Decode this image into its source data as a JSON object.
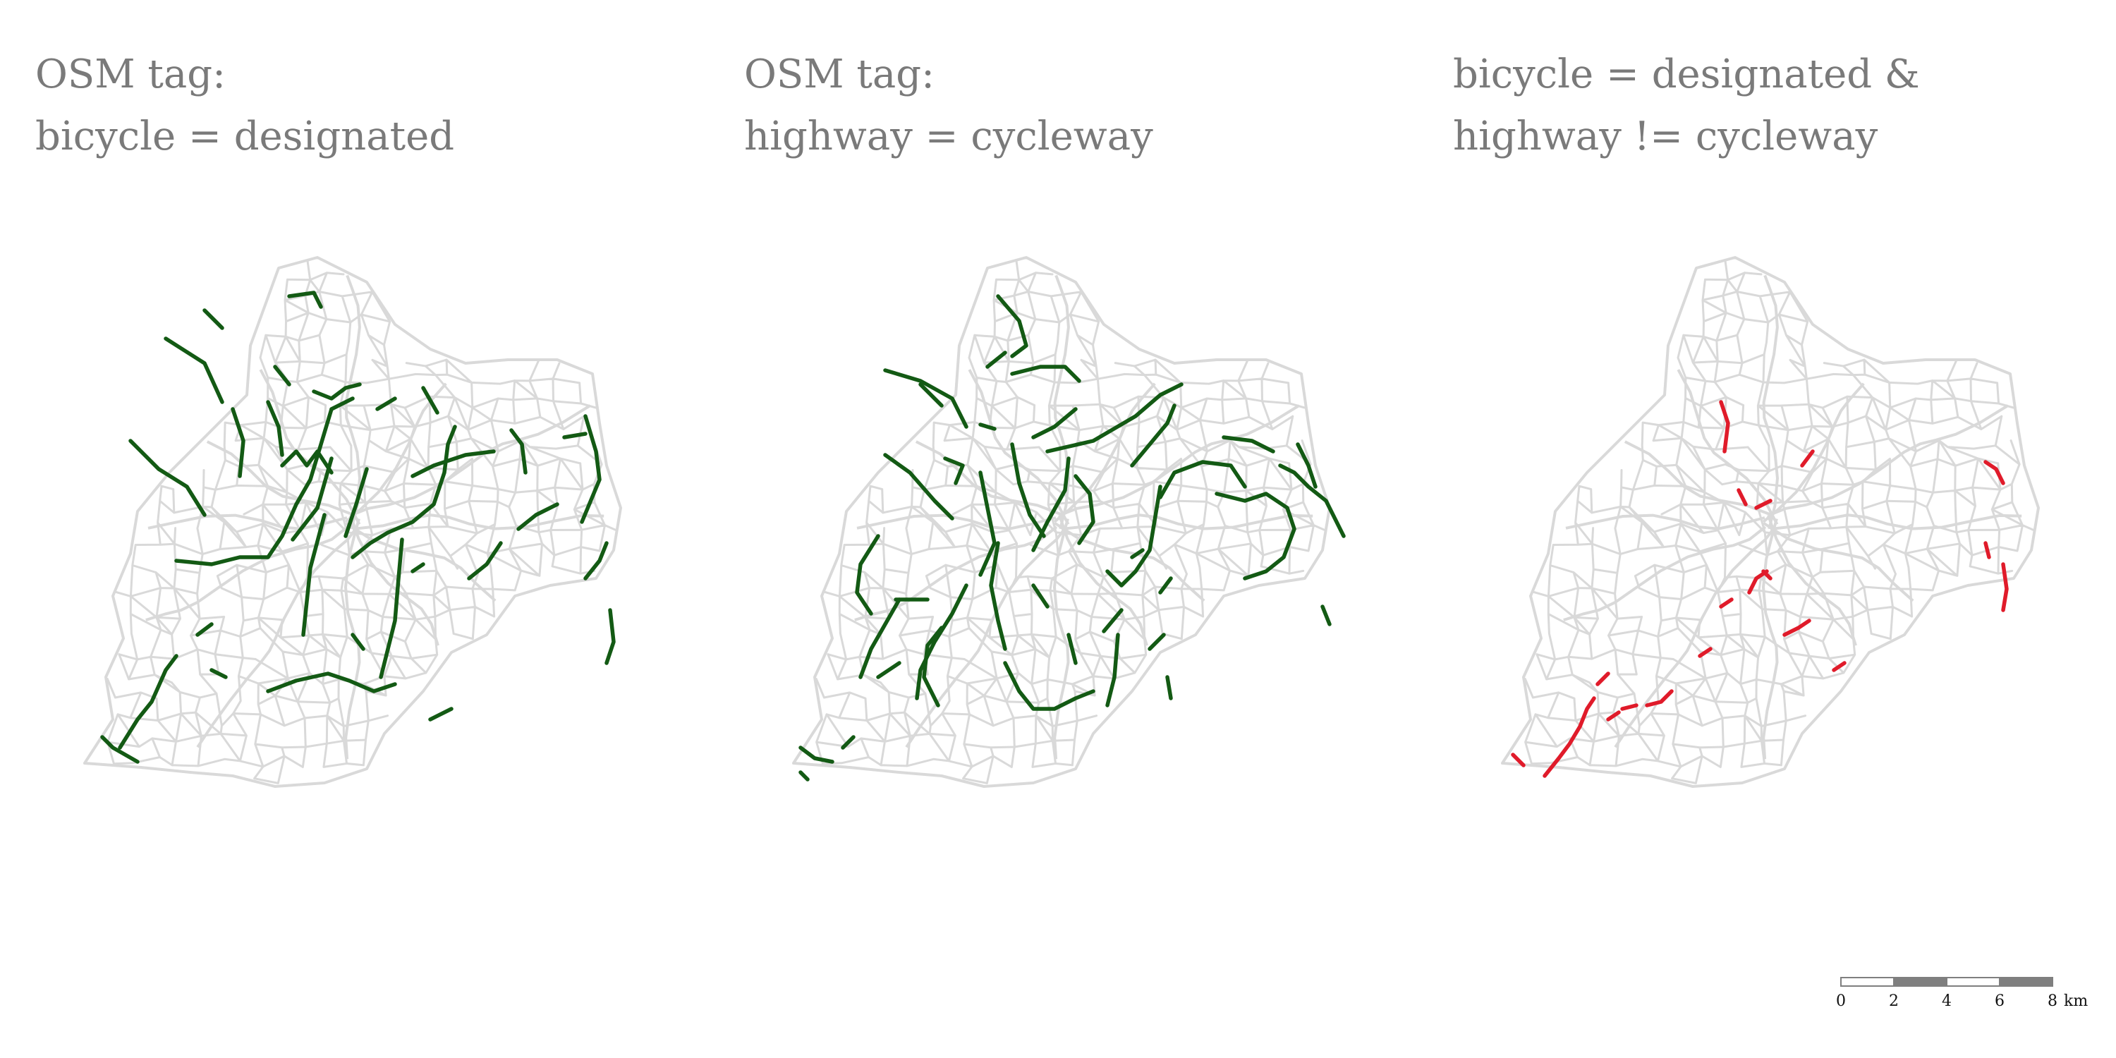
{
  "panels": [
    {
      "title_line1": "OSM tag:",
      "title_line2": "bicycle = designated",
      "highlight_color": "#135a14"
    },
    {
      "title_line1": "OSM tag:",
      "title_line2": "highway = cycleway",
      "highlight_color": "#135a14"
    },
    {
      "title_line1": "bicycle = designated &",
      "title_line2": "highway != cycleway",
      "highlight_color": "#e01b2a"
    }
  ],
  "base_network_color": "#d9d9d9",
  "title_color": "#7a7a7a",
  "scale_bar": {
    "ticks": [
      "0",
      "2",
      "4",
      "6",
      "8"
    ],
    "unit": "km",
    "fill_dark": "#7f7f7f",
    "fill_light": "#ffffff"
  }
}
